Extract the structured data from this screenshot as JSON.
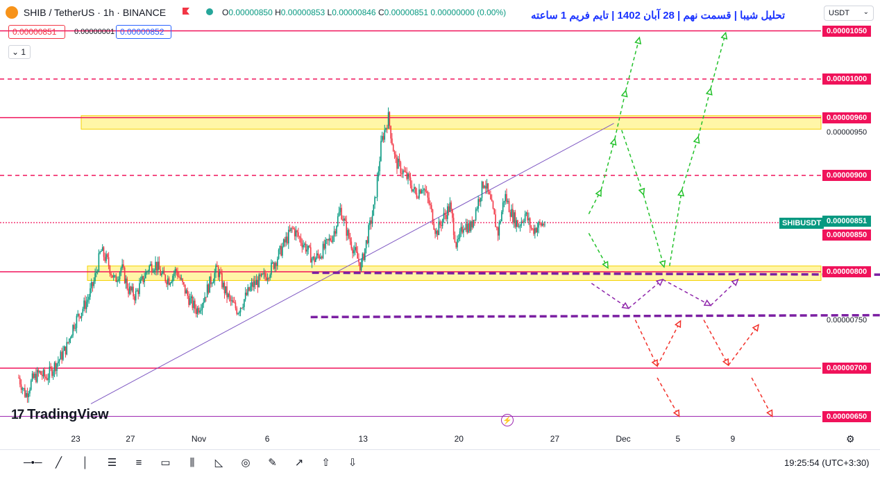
{
  "header": {
    "symbol": "SHIB",
    "separator": "/",
    "quote": "TetherUS · 1h · BINANCE",
    "ohlc": {
      "o_label": "O",
      "o": "0.00000850",
      "h_label": "H",
      "h": "0.00000853",
      "l_label": "L",
      "l": "0.00000846",
      "c_label": "C",
      "c": "0.00000851",
      "change": "0.00000000 (0.00%)"
    },
    "title": "تحلیل شیبا | قسمت نهم | 28 آبان 1402 | تایم فریم 1 ساعته",
    "currency": "USDT"
  },
  "trade": {
    "bid": "0.00000851",
    "spread": "0.00000001",
    "ask": "0.00000852",
    "lots": "1"
  },
  "brand": "TradingView",
  "status": {
    "time": "19:25:54",
    "timezone": "(UTC+3:30)"
  },
  "toolbar_icons": [
    "horizontal-ray-icon",
    "trend-line-icon",
    "vertical-line-icon",
    "fib-retracement-icon",
    "parallel-channel-icon",
    "rectangle-icon",
    "long-position-icon",
    "pattern-icon",
    "circle-icon",
    "brush-icon",
    "arrow-icon",
    "arrow-up-icon",
    "arrow-down-icon"
  ],
  "chart_data": {
    "type": "candlestick",
    "symbol": "SHIBUSDT",
    "interval": "1h",
    "ylim": [
      6.3e-06,
      1.065e-05
    ],
    "x_ticks": [
      "23",
      "27",
      "Nov",
      "6",
      "13",
      "20",
      "27",
      "Dec",
      "5",
      "9"
    ],
    "x_ticks_day_index": [
      0,
      4,
      9,
      14,
      21,
      28,
      35,
      40,
      44,
      48
    ],
    "price_labels": [
      {
        "value": "0.00001050",
        "style": "red"
      },
      {
        "value": "0.00001000",
        "style": "red"
      },
      {
        "value": "0.00000960",
        "style": "red"
      },
      {
        "value": "0.00000950",
        "style": "plain"
      },
      {
        "value": "0.00000900",
        "style": "red"
      },
      {
        "value": "0.00000851",
        "style": "current"
      },
      {
        "value": "0.00000850",
        "style": "red"
      },
      {
        "value": "0.00000800",
        "style": "red"
      },
      {
        "value": "0.00000750",
        "style": "plain"
      },
      {
        "value": "0.00000700",
        "style": "red"
      },
      {
        "value": "0.00000650",
        "style": "red"
      }
    ],
    "current_symbol_tag": "SHIBUSDT",
    "levels": [
      {
        "price": 1.05e-05,
        "style": "solid"
      },
      {
        "price": 1e-05,
        "style": "dashed"
      },
      {
        "price": 9.6e-06,
        "style": "solid"
      },
      {
        "price": 9e-06,
        "style": "dashed"
      },
      {
        "price": 8.51e-06,
        "style": "dotted"
      },
      {
        "price": 8e-06,
        "style": "solid"
      },
      {
        "price": 7e-06,
        "style": "solid"
      },
      {
        "price": 6.5e-06,
        "style": "thin"
      }
    ],
    "zones": [
      {
        "from": 9.48e-06,
        "to": 9.62e-06
      },
      {
        "from": 7.91e-06,
        "to": 8.06e-06
      }
    ],
    "trendline": [
      {
        "day": 0,
        "price": 6.63e-06
      },
      {
        "day": 38.2,
        "price": 9.54e-06
      }
    ],
    "close_path": [
      [
        0,
        6.9e-06
      ],
      [
        0.5,
        6.72e-06
      ],
      [
        1,
        6.88e-06
      ],
      [
        1.5,
        6.95e-06
      ],
      [
        2,
        6.9e-06
      ],
      [
        3,
        7.1e-06
      ],
      [
        3.5,
        7.22e-06
      ],
      [
        4,
        7.45e-06
      ],
      [
        4.5,
        7.58e-06
      ],
      [
        5,
        7.7e-06
      ],
      [
        5.5,
        7.9e-06
      ],
      [
        6,
        8.22e-06
      ],
      [
        6.5,
        8.1e-06
      ],
      [
        7,
        7.9e-06
      ],
      [
        7.5,
        8.05e-06
      ],
      [
        8,
        7.82e-06
      ],
      [
        8.5,
        7.75e-06
      ],
      [
        9,
        7.9e-06
      ],
      [
        9.5,
        8.05e-06
      ],
      [
        10,
        8.08e-06
      ],
      [
        10.5,
        7.95e-06
      ],
      [
        11,
        7.92e-06
      ],
      [
        11.5,
        8.02e-06
      ],
      [
        12,
        7.85e-06
      ],
      [
        12.5,
        7.7e-06
      ],
      [
        13,
        7.6e-06
      ],
      [
        13.5,
        7.72e-06
      ],
      [
        14,
        7.9e-06
      ],
      [
        14.5,
        8.03e-06
      ],
      [
        15,
        7.82e-06
      ],
      [
        15.5,
        7.68e-06
      ],
      [
        16,
        7.6e-06
      ],
      [
        16.5,
        7.72e-06
      ],
      [
        17,
        7.85e-06
      ],
      [
        17.5,
        7.9e-06
      ],
      [
        18,
        7.95e-06
      ],
      [
        18.5,
        8.05e-06
      ],
      [
        19,
        8.18e-06
      ],
      [
        19.5,
        8.32e-06
      ],
      [
        20,
        8.45e-06
      ],
      [
        20.5,
        8.35e-06
      ],
      [
        21,
        8.25e-06
      ],
      [
        21.5,
        8.12e-06
      ],
      [
        22,
        8.18e-06
      ],
      [
        22.5,
        8.28e-06
      ],
      [
        23,
        8.4e-06
      ],
      [
        23.5,
        8.65e-06
      ],
      [
        24,
        8.4e-06
      ],
      [
        24.5,
        8.22e-06
      ],
      [
        25,
        8.05e-06
      ],
      [
        25.5,
        8.38e-06
      ],
      [
        26,
        8.7e-06
      ],
      [
        26.5,
        9.35e-06
      ],
      [
        27,
        9.6e-06
      ],
      [
        27.5,
        9.15e-06
      ],
      [
        28,
        9.05e-06
      ],
      [
        28.5,
        8.95e-06
      ],
      [
        29,
        8.8e-06
      ],
      [
        29.5,
        8.9e-06
      ],
      [
        30,
        8.7e-06
      ],
      [
        30.5,
        8.4e-06
      ],
      [
        31,
        8.56e-06
      ],
      [
        31.5,
        8.68e-06
      ],
      [
        32,
        8.25e-06
      ],
      [
        32.5,
        8.5e-06
      ],
      [
        33,
        8.45e-06
      ],
      [
        33.5,
        8.7e-06
      ],
      [
        34,
        8.95e-06
      ],
      [
        34.5,
        8.7e-06
      ],
      [
        35,
        8.4e-06
      ],
      [
        35.5,
        8.8e-06
      ],
      [
        36,
        8.6e-06
      ],
      [
        36.5,
        8.48e-06
      ],
      [
        37,
        8.6e-06
      ],
      [
        37.5,
        8.43e-06
      ],
      [
        38,
        8.48e-06
      ],
      [
        38.5,
        8.51e-06
      ]
    ],
    "scenario_paths": [
      {
        "color": "green",
        "points": [
          [
            38.6,
            8.6e-06
          ],
          [
            39.5,
            8.85e-06
          ],
          [
            40.5,
            9.38e-06
          ],
          [
            41.3,
            9.88e-06
          ],
          [
            42.3,
            1.043e-05
          ]
        ]
      },
      {
        "color": "green",
        "points": [
          [
            41.0,
            9.47e-06
          ],
          [
            42.6,
            8.8e-06
          ],
          [
            44.1,
            8.05e-06
          ]
        ]
      },
      {
        "color": "green",
        "points": [
          [
            44.5,
            8.06e-06
          ],
          [
            45.4,
            8.85e-06
          ],
          [
            46.6,
            9.4e-06
          ],
          [
            47.5,
            9.9e-06
          ],
          [
            48.6,
            1.048e-05
          ]
        ]
      },
      {
        "color": "green",
        "points": [
          [
            38.6,
            8.4e-06
          ],
          [
            40.0,
            8.04e-06
          ]
        ]
      },
      {
        "color": "purple",
        "points": [
          [
            38.8,
            7.88e-06
          ],
          [
            41.5,
            7.62e-06
          ],
          [
            44.0,
            7.92e-06
          ],
          [
            47.5,
            7.65e-06
          ],
          [
            49.5,
            7.92e-06
          ]
        ]
      },
      {
        "color": "red",
        "points": [
          [
            42.0,
            7.5e-06
          ],
          [
            43.6,
            7.02e-06
          ],
          [
            45.3,
            7.49e-06
          ]
        ]
      },
      {
        "color": "red",
        "points": [
          [
            47.0,
            7.5e-06
          ],
          [
            48.8,
            7.03e-06
          ],
          [
            51.0,
            7.45e-06
          ]
        ]
      },
      {
        "color": "red",
        "points": [
          [
            43.6,
            6.9e-06
          ],
          [
            45.2,
            6.5e-06
          ]
        ]
      },
      {
        "color": "red",
        "points": [
          [
            50.5,
            6.9e-06
          ],
          [
            52.0,
            6.5e-06
          ]
        ]
      }
    ],
    "purple_arrows": [
      {
        "from": [
          19.5,
          7.99e-06
        ],
        "to": [
          52.5,
          7.97e-06
        ]
      },
      {
        "from": [
          19.4,
          7.53e-06
        ],
        "to": [
          52.5,
          7.55e-06
        ]
      }
    ]
  }
}
